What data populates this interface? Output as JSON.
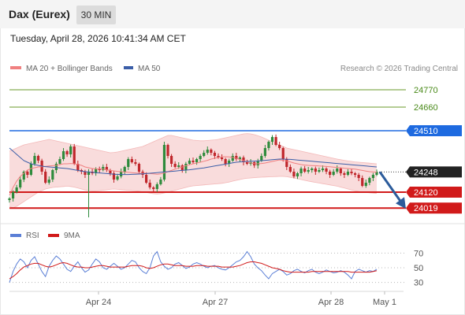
{
  "header": {
    "title": "Dax (Eurex)",
    "timeframe": "30 MIN"
  },
  "timestamp": "Tuesday, April 28, 2026 10:41:34 AM CET",
  "credit": "Research © 2026 Trading Central",
  "colors": {
    "candle_up": "#2e8b3c",
    "candle_down": "#c0262b",
    "bollinger_fill": "#f9dcdc",
    "bollinger_band": "#f3b8b8",
    "ma20": "#f08080",
    "ma50": "#3b5ea8",
    "resistance": "#6a9a2a",
    "pivot": "#1e6ae0",
    "support": "#d11a1a",
    "last_price": "#222222",
    "arrow": "#2b5b9b",
    "rsi": "#5b7fd6",
    "rsi_ma": "#d11a1a"
  },
  "chart_data": [
    {
      "type": "candlestick",
      "title": "Dax (Eurex)",
      "interval": "30 MIN",
      "legend": [
        {
          "label": "MA 20 + Bollinger Bands",
          "color": "#f08080"
        },
        {
          "label": "MA 50",
          "color": "#3b5ea8"
        }
      ],
      "legend_position": "top-left",
      "ylim": [
        23950,
        24850
      ],
      "x_ticks": [
        "Apr 24",
        "Apr 27",
        "Apr 28",
        "May 1"
      ],
      "levels": [
        {
          "value": 24770,
          "label": "24770",
          "kind": "resistance"
        },
        {
          "value": 24660,
          "label": "24660",
          "kind": "resistance"
        },
        {
          "value": 24510,
          "label": "24510",
          "kind": "pivot"
        },
        {
          "value": 24248,
          "label": "24248",
          "kind": "last"
        },
        {
          "value": 24120,
          "label": "24120",
          "kind": "support"
        },
        {
          "value": 24019,
          "label": "24019",
          "kind": "support"
        }
      ],
      "last_price": 24248,
      "forecast": {
        "direction": "down",
        "from": 24248,
        "target": 24019
      },
      "closes": [
        24080,
        24120,
        24150,
        24200,
        24250,
        24230,
        24300,
        24350,
        24320,
        24250,
        24180,
        24200,
        24260,
        24300,
        24330,
        24380,
        24360,
        24410,
        24300,
        24260,
        24250,
        24230,
        24250,
        24240,
        24270,
        24260,
        24280,
        24260,
        24240,
        24200,
        24220,
        24250,
        24280,
        24330,
        24310,
        24300,
        24250,
        24230,
        24180,
        24150,
        24140,
        24170,
        24200,
        24420,
        24350,
        24300,
        24280,
        24290,
        24260,
        24300,
        24320,
        24310,
        24330,
        24350,
        24370,
        24390,
        24370,
        24350,
        24340,
        24330,
        24300,
        24320,
        24350,
        24330,
        24340,
        24310,
        24300,
        24310,
        24290,
        24320,
        24350,
        24400,
        24440,
        24470,
        24420,
        24400,
        24330,
        24280,
        24250,
        24220,
        24240,
        24270,
        24250,
        24260,
        24270,
        24250,
        24260,
        24270,
        24250,
        24230,
        24250,
        24270,
        24240,
        24230,
        24250,
        24240,
        24230,
        24210,
        24160,
        24180,
        24210,
        24230,
        24248
      ],
      "ma20": [
        24100,
        24150,
        24190,
        24220,
        24240,
        24260,
        24270,
        24275,
        24280,
        24282,
        24284,
        24286,
        24288,
        24290,
        24295,
        24300,
        24300,
        24302,
        24300,
        24296,
        24290,
        24280,
        24275,
        24270,
        24268,
        24267,
        24266,
        24262,
        24258,
        24255,
        24252,
        24250,
        24248,
        24246,
        24244,
        24242,
        24240,
        24240,
        24240,
        24238,
        24236,
        24234,
        24236,
        24242,
        24250,
        24258,
        24266,
        24274,
        24280,
        24288,
        24294,
        24300,
        24305,
        24310,
        24316,
        24322,
        24330,
        24335,
        24340,
        24345,
        24345,
        24344,
        24340,
        24335,
        24328,
        24320,
        24312,
        24306,
        24300,
        24300,
        24302,
        24305,
        24310,
        24315,
        24320,
        24325,
        24322,
        24318,
        24312,
        24305,
        24300,
        24295,
        24292,
        24290,
        24289,
        24288,
        24286,
        24285,
        24283,
        24281,
        24279,
        24277,
        24275,
        24272,
        24270,
        24268,
        24266,
        24262,
        24258,
        24254,
        24250,
        24248,
        24246
      ],
      "bollinger_upper": [
        24380,
        24390,
        24400,
        24410,
        24420,
        24425,
        24430,
        24435,
        24440,
        24445,
        24450,
        24455,
        24450,
        24445,
        24440,
        24435,
        24430,
        24425,
        24420,
        24415,
        24410,
        24405,
        24400,
        24395,
        24390,
        24385,
        24380,
        24375,
        24370,
        24372,
        24375,
        24380,
        24385,
        24390,
        24395,
        24400,
        24405,
        24410,
        24420,
        24430,
        24440,
        24450,
        24460,
        24470,
        24480,
        24480,
        24475,
        24470,
        24465,
        24460,
        24455,
        24450,
        24448,
        24446,
        24446,
        24448,
        24450,
        24452,
        24455,
        24460,
        24465,
        24470,
        24475,
        24480,
        24485,
        24490,
        24492,
        24490,
        24485,
        24478,
        24470,
        24460,
        24450,
        24440,
        24430,
        24420,
        24410,
        24400,
        24395,
        24390,
        24385,
        24380,
        24375,
        24370,
        24365,
        24360,
        24355,
        24350,
        24345,
        24340,
        24335,
        24330,
        24326,
        24322,
        24318,
        24315,
        24312,
        24310,
        24308,
        24306,
        24304,
        24302,
        24300
      ],
      "bollinger_lower": [
        24030,
        24020,
        24030,
        24045,
        24060,
        24075,
        24090,
        24105,
        24120,
        24130,
        24140,
        24145,
        24150,
        24152,
        24154,
        24156,
        24158,
        24156,
        24152,
        24146,
        24140,
        24134,
        24130,
        24128,
        24128,
        24130,
        24132,
        24135,
        24138,
        24140,
        24138,
        24136,
        24134,
        24132,
        24130,
        24128,
        24126,
        24122,
        24118,
        24114,
        24110,
        24108,
        24110,
        24115,
        24120,
        24126,
        24132,
        24138,
        24144,
        24150,
        24156,
        24160,
        24162,
        24164,
        24166,
        24168,
        24170,
        24172,
        24174,
        24176,
        24180,
        24184,
        24190,
        24195,
        24200,
        24205,
        24208,
        24210,
        24212,
        24214,
        24215,
        24216,
        24217,
        24218,
        24219,
        24220,
        24220,
        24218,
        24214,
        24210,
        24205,
        24200,
        24195,
        24190,
        24186,
        24182,
        24178,
        24174,
        24170,
        24166,
        24162,
        24158,
        24152,
        24146,
        24140,
        24134,
        24128,
        24124,
        24120,
        24118,
        24116,
        24114,
        24112
      ],
      "ma50": [
        24400,
        24380,
        24360,
        24340,
        24320,
        24310,
        24300,
        24295,
        24290,
        24285,
        24282,
        24280,
        24278,
        24276,
        24274,
        24272,
        24270,
        24266,
        24262,
        24258,
        24254,
        24250,
        24248,
        24246,
        24244,
        24242,
        24240,
        24238,
        24236,
        24234,
        24233,
        24232,
        24232,
        24232,
        24233,
        24234,
        24235,
        24236,
        24238,
        24240,
        24242,
        24244,
        24246,
        24248,
        24250,
        24252,
        24254,
        24256,
        24258,
        24260,
        24262,
        24265,
        24268,
        24271,
        24274,
        24278,
        24282,
        24286,
        24290,
        24294,
        24298,
        24302,
        24306,
        24310,
        24312,
        24314,
        24315,
        24316,
        24317,
        24318,
        24320,
        24322,
        24324,
        24326,
        24328,
        24330,
        24330,
        24329,
        24328,
        24326,
        24324,
        24322,
        24320,
        24318,
        24316,
        24314,
        24312,
        24310,
        24308,
        24306,
        24304,
        24302,
        24300,
        24298,
        24296,
        24294,
        24292,
        24290,
        24288,
        24286,
        24284,
        24282,
        24280
      ]
    },
    {
      "type": "line",
      "legend": [
        {
          "label": "RSI",
          "color": "#5b7fd6"
        },
        {
          "label": "9MA",
          "color": "#d11a1a"
        }
      ],
      "ylim": [
        20,
        80
      ],
      "y_ticks": [
        30,
        50,
        70
      ],
      "x_ticks": [
        "Apr 24",
        "Apr 27",
        "Apr 28",
        "May 1"
      ],
      "series": [
        {
          "name": "RSI",
          "values": [
            30,
            45,
            55,
            62,
            58,
            50,
            60,
            65,
            55,
            45,
            38,
            52,
            60,
            66,
            62,
            55,
            48,
            45,
            52,
            58,
            50,
            44,
            47,
            55,
            62,
            58,
            50,
            48,
            52,
            56,
            52,
            48,
            50,
            55,
            60,
            58,
            50,
            45,
            42,
            50,
            66,
            72,
            58,
            52,
            48,
            50,
            55,
            57,
            53,
            49,
            51,
            55,
            57,
            55,
            52,
            50,
            52,
            53,
            50,
            48,
            47,
            50,
            54,
            58,
            60,
            65,
            72,
            65,
            55,
            50,
            46,
            40,
            35,
            42,
            45,
            48,
            45,
            40,
            42,
            46,
            48,
            45,
            43,
            46,
            48,
            44,
            42,
            44,
            47,
            45,
            43,
            44,
            46,
            44,
            40,
            35,
            45,
            48,
            46,
            44,
            46,
            45,
            48
          ]
        },
        {
          "name": "9MA",
          "values": [
            35,
            38,
            42,
            47,
            51,
            53,
            55,
            56,
            56,
            54,
            52,
            51,
            52,
            54,
            56,
            57,
            56,
            54,
            52,
            51,
            51,
            50,
            50,
            51,
            52,
            53,
            53,
            52,
            51,
            51,
            51,
            51,
            51,
            52,
            53,
            53,
            53,
            52,
            50,
            49,
            50,
            52,
            54,
            55,
            55,
            54,
            53,
            53,
            53,
            52,
            52,
            52,
            53,
            53,
            53,
            52,
            52,
            52,
            52,
            51,
            51,
            51,
            51,
            52,
            53,
            55,
            57,
            58,
            58,
            57,
            56,
            54,
            52,
            50,
            49,
            48,
            46,
            45,
            44,
            44,
            44,
            44,
            44,
            44,
            45,
            45,
            45,
            45,
            45,
            45,
            45,
            45,
            45,
            45,
            45,
            44,
            44,
            44,
            44,
            44,
            44,
            45,
            46
          ]
        }
      ]
    }
  ]
}
